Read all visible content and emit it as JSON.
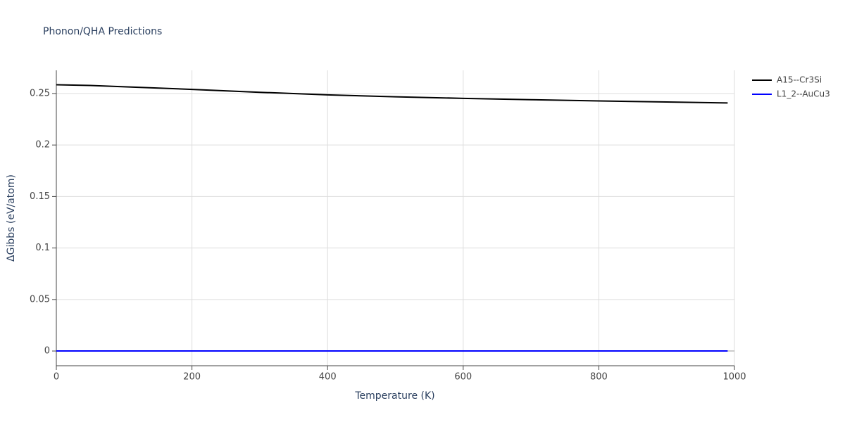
{
  "chart_data": {
    "type": "line",
    "title": "Phonon/QHA Predictions",
    "x_label": "Temperature (K)",
    "y_label": "ΔGibbs (eV/atom)",
    "series": [
      {
        "name": "A15--Cr3Si",
        "color": "#000000",
        "x": [
          0,
          50,
          100,
          200,
          300,
          400,
          500,
          600,
          700,
          800,
          900,
          990
        ],
        "values": [
          0.2585,
          0.2578,
          0.2565,
          0.254,
          0.2512,
          0.2487,
          0.2468,
          0.2453,
          0.244,
          0.2428,
          0.2418,
          0.2408
        ]
      },
      {
        "name": "L1_2--AuCu3",
        "color": "#0000ff",
        "x": [
          0,
          990
        ],
        "values": [
          0,
          0
        ]
      }
    ],
    "xlim": [
      0,
      1000
    ],
    "xticks": [
      0,
      200,
      400,
      600,
      800,
      1000
    ],
    "ylim": [
      -0.0143,
      0.2725
    ],
    "yticks": [
      0,
      0.05,
      0.1,
      0.15,
      0.2,
      0.25
    ],
    "grid": true,
    "legend": "top-right"
  }
}
